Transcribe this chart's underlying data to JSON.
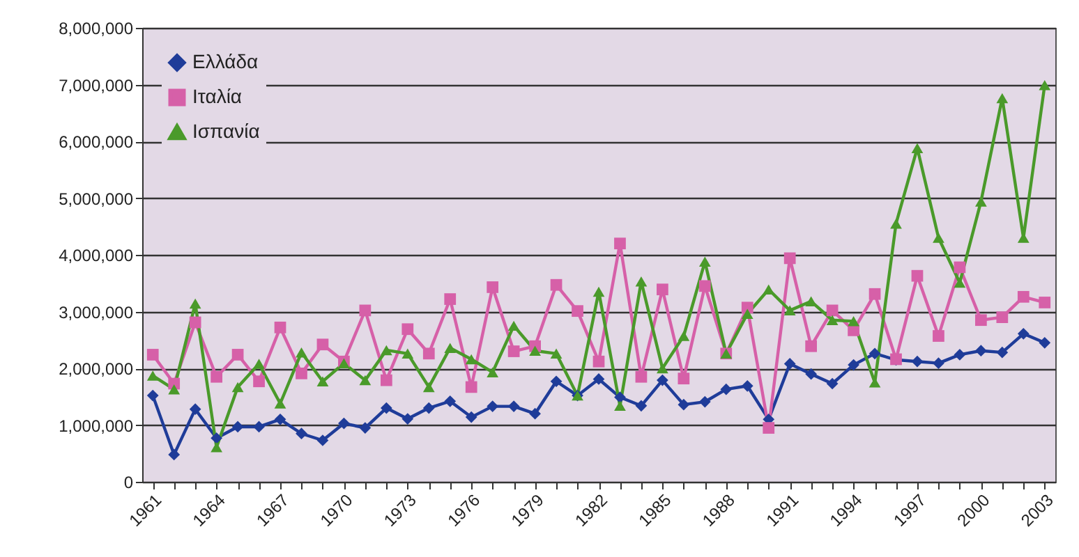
{
  "chart_data": {
    "type": "line",
    "categories": [
      "1961",
      null,
      null,
      "1964",
      null,
      null,
      "1967",
      null,
      null,
      "1970",
      null,
      null,
      "1973",
      null,
      null,
      "1976",
      null,
      null,
      "1979",
      null,
      null,
      "1982",
      null,
      null,
      "1985",
      null,
      null,
      "1988",
      null,
      null,
      "1991",
      null,
      null,
      "1994",
      null,
      null,
      "1997",
      null,
      null,
      "2000",
      null,
      null,
      "2003"
    ],
    "series": [
      {
        "name": "Ελλάδα",
        "color": "#1f3c99",
        "marker": "diamond",
        "values": [
          1520000,
          480000,
          1280000,
          770000,
          970000,
          970000,
          1100000,
          850000,
          730000,
          1030000,
          950000,
          1300000,
          1110000,
          1300000,
          1420000,
          1140000,
          1330000,
          1330000,
          1200000,
          1770000,
          1520000,
          1810000,
          1490000,
          1340000,
          1790000,
          1360000,
          1410000,
          1630000,
          1690000,
          1100000,
          2080000,
          1900000,
          1730000,
          2060000,
          2260000,
          2150000,
          2120000,
          2090000,
          2240000,
          2310000,
          2280000,
          2610000,
          2450000
        ]
      },
      {
        "name": "Ιταλία",
        "color": "#d660a8",
        "marker": "square",
        "values": [
          2240000,
          1730000,
          2810000,
          1850000,
          2240000,
          1770000,
          2720000,
          1910000,
          2420000,
          2120000,
          3020000,
          1790000,
          2690000,
          2260000,
          3220000,
          1670000,
          3430000,
          2300000,
          2390000,
          3470000,
          3010000,
          2120000,
          4200000,
          1850000,
          3390000,
          1820000,
          3450000,
          2260000,
          3070000,
          950000,
          3940000,
          2390000,
          3020000,
          2670000,
          3310000,
          2160000,
          3630000,
          2570000,
          3780000,
          2850000,
          2900000,
          3260000,
          3160000
        ]
      },
      {
        "name": "Ισπανία",
        "color": "#4a9a2a",
        "marker": "triangle",
        "values": [
          1870000,
          1630000,
          3140000,
          610000,
          1670000,
          2080000,
          1380000,
          2280000,
          1770000,
          2090000,
          1790000,
          2320000,
          2260000,
          1670000,
          2360000,
          2160000,
          1930000,
          2750000,
          2310000,
          2260000,
          1520000,
          3350000,
          1340000,
          3530000,
          2000000,
          2570000,
          3880000,
          2260000,
          2960000,
          3390000,
          3020000,
          3180000,
          2850000,
          2830000,
          1750000,
          4550000,
          5880000,
          4300000,
          3510000,
          4940000,
          6760000,
          4300000,
          6990000
        ]
      }
    ],
    "ylim": [
      0,
      8000000
    ],
    "yticks": [
      0,
      {
        "value": 1000000,
        "label": "1,000,000"
      },
      {
        "value": 2000000,
        "label": "2,000,000"
      },
      {
        "value": 3000000,
        "label": "3,000,000"
      },
      {
        "value": 4000000,
        "label": "4,000,000"
      },
      {
        "value": 5000000,
        "label": "5,000,000"
      },
      {
        "value": 6000000,
        "label": "6,000,000"
      },
      {
        "value": 7000000,
        "label": "7,000,000"
      },
      {
        "value": 8000000,
        "label": "8,000,000"
      }
    ],
    "grid": "y",
    "legend": "top left",
    "line_style": "solid"
  }
}
